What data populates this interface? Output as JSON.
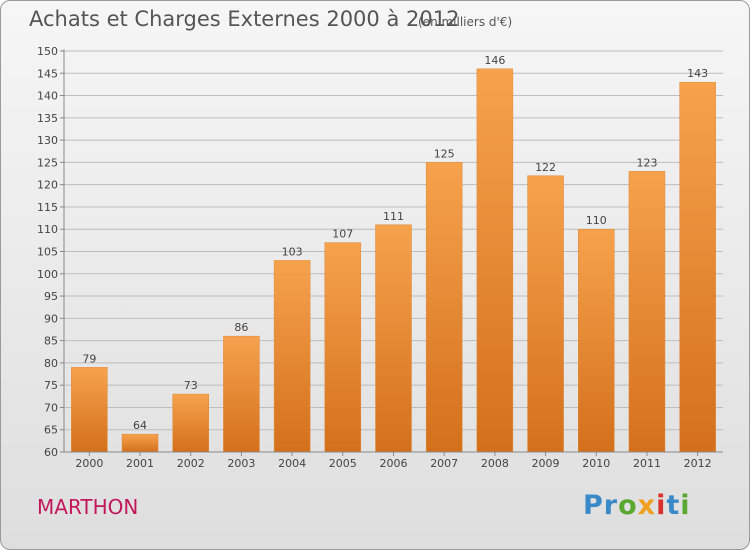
{
  "title": "Achats et Charges Externes 2000 à 2012",
  "subtitle": "(en milliers d'€)",
  "commune": "MARTHON",
  "logo": {
    "p1": "Pr",
    "p2": "o",
    "p3": "x",
    "p4": "i",
    "p5": "t",
    "p6": "i"
  },
  "colors": {
    "bar_top": "#f6a24d",
    "bar_bottom": "#d4701c",
    "axis": "#888888",
    "grid": "#bdbdbd"
  },
  "chart_data": {
    "type": "bar",
    "title": "Achats et Charges Externes 2000 à 2012",
    "subtitle": "(en milliers d'€)",
    "categories": [
      "2000",
      "2001",
      "2002",
      "2003",
      "2004",
      "2005",
      "2006",
      "2007",
      "2008",
      "2009",
      "2010",
      "2011",
      "2012"
    ],
    "values": [
      79,
      64,
      73,
      86,
      103,
      107,
      111,
      125,
      146,
      122,
      110,
      123,
      143
    ],
    "ylim": [
      60,
      150
    ],
    "ytick_step": 5,
    "grid": true,
    "xlabel": "",
    "ylabel": ""
  }
}
